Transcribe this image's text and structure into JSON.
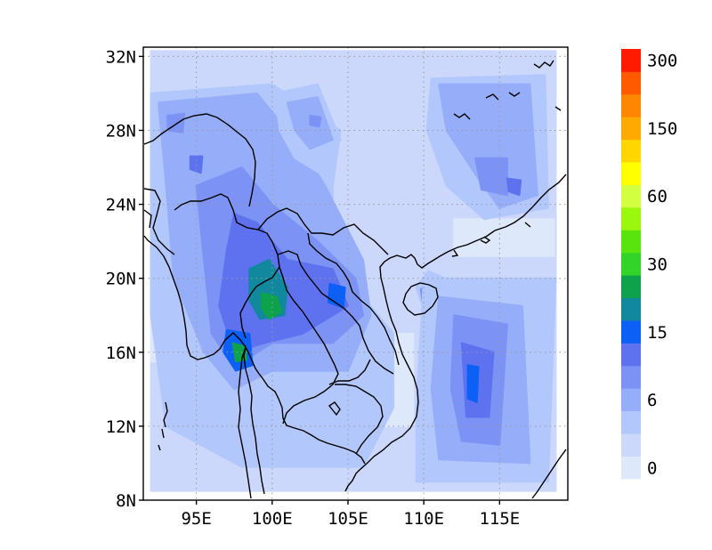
{
  "map": {
    "lon_range": [
      91.5,
      119.5
    ],
    "lat_range": [
      8,
      32.5
    ],
    "lat_ticks": [
      {
        "value": 8,
        "label": "8N"
      },
      {
        "value": 12,
        "label": "12N"
      },
      {
        "value": 16,
        "label": "16N"
      },
      {
        "value": 20,
        "label": "20N"
      },
      {
        "value": 24,
        "label": "24N"
      },
      {
        "value": 28,
        "label": "28N"
      },
      {
        "value": 32,
        "label": "32N"
      }
    ],
    "lon_ticks": [
      {
        "value": 95,
        "label": "95E"
      },
      {
        "value": 100,
        "label": "100E"
      },
      {
        "value": 105,
        "label": "105E"
      },
      {
        "value": 110,
        "label": "110E"
      },
      {
        "value": 115,
        "label": "115E"
      }
    ],
    "gridlines": "dotted",
    "coastline_color": "#000000",
    "fill_regions": [
      {
        "level": 1,
        "polygon": [
          [
            92,
            32.3
          ],
          [
            118.7,
            32.3
          ],
          [
            118.7,
            8.5
          ],
          [
            92,
            8.5
          ]
        ]
      },
      {
        "level": 0,
        "polygon": [
          [
            112,
            23.2
          ],
          [
            118.6,
            23.2
          ],
          [
            118.6,
            21.2
          ],
          [
            112,
            21.2
          ]
        ]
      },
      {
        "level": 0,
        "polygon": [
          [
            92,
            18.5
          ],
          [
            93.2,
            18.5
          ],
          [
            93.2,
            15.5
          ],
          [
            92,
            15.5
          ]
        ]
      },
      {
        "level": 0,
        "polygon": [
          [
            107.2,
            17
          ],
          [
            109.3,
            17
          ],
          [
            109.3,
            12
          ],
          [
            107.2,
            12
          ]
        ]
      },
      {
        "level": 2,
        "polygon": [
          [
            92,
            30
          ],
          [
            100,
            30.5
          ],
          [
            104.5,
            28
          ],
          [
            104,
            25
          ],
          [
            104,
            21
          ],
          [
            108,
            17
          ],
          [
            108,
            13
          ],
          [
            106,
            9.8
          ],
          [
            98,
            9.8
          ],
          [
            93,
            12
          ],
          [
            92,
            18
          ]
        ]
      },
      {
        "level": 3,
        "polygon": [
          [
            92.5,
            29.5
          ],
          [
            99,
            30
          ],
          [
            102,
            27
          ],
          [
            103.5,
            25
          ],
          [
            106,
            21
          ],
          [
            106.5,
            18
          ],
          [
            105,
            15
          ],
          [
            100,
            15
          ],
          [
            97.5,
            14
          ],
          [
            95.5,
            16
          ],
          [
            93.5,
            20
          ],
          [
            93,
            25
          ]
        ]
      },
      {
        "level": 4,
        "polygon": [
          [
            95,
            25
          ],
          [
            98,
            26
          ],
          [
            100,
            24
          ],
          [
            103,
            22
          ],
          [
            105.5,
            20
          ],
          [
            106,
            18
          ],
          [
            104,
            16.5
          ],
          [
            100,
            16.5
          ],
          [
            97.5,
            15.2
          ],
          [
            96,
            17
          ],
          [
            95.5,
            21
          ]
        ]
      },
      {
        "level": 5,
        "polygon": [
          [
            97.5,
            23.5
          ],
          [
            99,
            23
          ],
          [
            101,
            21
          ],
          [
            104,
            20.5
          ],
          [
            105,
            18.5
          ],
          [
            102,
            17
          ],
          [
            99.5,
            16.5
          ],
          [
            97.5,
            16
          ],
          [
            96.5,
            18.5
          ],
          [
            97,
            21.5
          ]
        ]
      },
      {
        "level": 7,
        "polygon": [
          [
            98.5,
            20.5
          ],
          [
            99.8,
            21
          ],
          [
            101,
            19.5
          ],
          [
            100.8,
            18
          ],
          [
            99.2,
            17.8
          ],
          [
            98.5,
            18.8
          ]
        ]
      },
      {
        "level": 8,
        "polygon": [
          [
            99.3,
            19.2
          ],
          [
            100.3,
            19
          ],
          [
            100.6,
            18.2
          ],
          [
            99.8,
            17.8
          ],
          [
            99.3,
            18.4
          ]
        ]
      },
      {
        "level": 6,
        "polygon": [
          [
            97,
            17.2
          ],
          [
            98.5,
            17
          ],
          [
            98.7,
            15.3
          ],
          [
            97.6,
            15
          ],
          [
            96.8,
            16
          ]
        ]
      },
      {
        "level": 8,
        "polygon": [
          [
            97.4,
            16.5
          ],
          [
            98.2,
            16.3
          ],
          [
            98.3,
            15.6
          ],
          [
            97.6,
            15.5
          ]
        ]
      },
      {
        "level": 6,
        "polygon": [
          [
            103.8,
            19.7
          ],
          [
            104.8,
            19.5
          ],
          [
            104.7,
            18.4
          ],
          [
            103.7,
            18.7
          ]
        ]
      },
      {
        "level": 2,
        "polygon": [
          [
            100.2,
            30
          ],
          [
            103,
            30.5
          ],
          [
            104.5,
            27.5
          ],
          [
            103.5,
            25.5
          ],
          [
            101.5,
            26.5
          ],
          [
            100.5,
            28
          ]
        ]
      },
      {
        "level": 3,
        "polygon": [
          [
            101,
            29.5
          ],
          [
            103,
            29.8
          ],
          [
            104,
            27.5
          ],
          [
            102.5,
            27
          ],
          [
            101.5,
            28
          ]
        ]
      },
      {
        "level": 4,
        "polygon": [
          [
            102.5,
            28.8
          ],
          [
            103.2,
            28.7
          ],
          [
            103.1,
            28.2
          ],
          [
            102.5,
            28.3
          ]
        ]
      },
      {
        "level": 4,
        "polygon": [
          [
            93.1,
            28.8
          ],
          [
            94.2,
            28.9
          ],
          [
            94.1,
            27.9
          ],
          [
            93.1,
            28
          ]
        ]
      },
      {
        "level": 5,
        "polygon": [
          [
            94.6,
            26.6
          ],
          [
            95.4,
            26.6
          ],
          [
            95.3,
            25.7
          ],
          [
            94.6,
            25.9
          ]
        ]
      },
      {
        "level": 2,
        "polygon": [
          [
            110.5,
            30.8
          ],
          [
            118,
            31
          ],
          [
            118.2,
            23.8
          ],
          [
            114,
            23.2
          ],
          [
            111.5,
            25
          ],
          [
            110.2,
            28
          ]
        ]
      },
      {
        "level": 3,
        "polygon": [
          [
            111,
            30.5
          ],
          [
            117,
            30.5
          ],
          [
            117.5,
            24.5
          ],
          [
            115,
            23.8
          ],
          [
            113.5,
            25.5
          ],
          [
            111.5,
            28
          ]
        ]
      },
      {
        "level": 4,
        "polygon": [
          [
            113.4,
            26.5
          ],
          [
            115.5,
            26.5
          ],
          [
            115.5,
            24.5
          ],
          [
            113.8,
            24.8
          ]
        ]
      },
      {
        "level": 5,
        "polygon": [
          [
            115.5,
            25.4
          ],
          [
            116.4,
            25.3
          ],
          [
            116.3,
            24.5
          ],
          [
            115.6,
            24.7
          ]
        ]
      },
      {
        "level": 2,
        "polygon": [
          [
            109.5,
            19.5
          ],
          [
            110.3,
            20.4
          ],
          [
            111.4,
            20
          ],
          [
            111.3,
            18.8
          ],
          [
            110,
            18.3
          ]
        ]
      },
      {
        "level": 4,
        "polygon": [
          [
            109.8,
            19.4
          ],
          [
            110.5,
            19.8
          ],
          [
            111,
            19.2
          ],
          [
            110.5,
            18.5
          ],
          [
            109.9,
            18.8
          ]
        ]
      },
      {
        "level": 2,
        "polygon": [
          [
            110,
            20
          ],
          [
            118.7,
            20
          ],
          [
            118.2,
            9
          ],
          [
            109.5,
            9
          ],
          [
            109.5,
            13
          ]
        ]
      },
      {
        "level": 3,
        "polygon": [
          [
            111,
            19
          ],
          [
            116.5,
            18.5
          ],
          [
            117,
            10
          ],
          [
            111,
            10.2
          ],
          [
            110.5,
            14
          ]
        ]
      },
      {
        "level": 4,
        "polygon": [
          [
            112,
            18
          ],
          [
            115.5,
            17.5
          ],
          [
            115,
            11
          ],
          [
            112.5,
            11.2
          ],
          [
            111.8,
            14
          ]
        ]
      },
      {
        "level": 5,
        "polygon": [
          [
            112.5,
            16.5
          ],
          [
            114.6,
            16
          ],
          [
            114.3,
            12.5
          ],
          [
            112.8,
            12.5
          ]
        ]
      },
      {
        "level": 6,
        "polygon": [
          [
            112.9,
            15.3
          ],
          [
            113.6,
            15.2
          ],
          [
            113.5,
            13.3
          ],
          [
            112.9,
            13.5
          ]
        ]
      }
    ],
    "colorbar": {
      "colors": [
        "#dee8fb",
        "#cbd8fb",
        "#b2c7fb",
        "#96adf9",
        "#7c93f5",
        "#5e72f0",
        "#0d60f6",
        "#11889e",
        "#0ea24c",
        "#32d42a",
        "#5ae40e",
        "#9cf70f",
        "#d2ff40",
        "#ffff00",
        "#ffd600",
        "#ffaa00",
        "#ff8600",
        "#ff5a00",
        "#ff1a00"
      ],
      "labels": [
        "0",
        "6",
        "15",
        "30",
        "60",
        "150",
        "300"
      ]
    }
  }
}
